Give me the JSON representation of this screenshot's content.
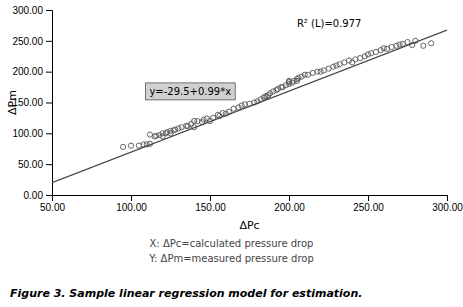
{
  "chart_data": {
    "type": "scatter",
    "xlabel": "ΔPc",
    "ylabel": "ΔPm",
    "annotations": [
      "R² (L)=0.977",
      "y=-29.5+0.99*x"
    ],
    "notes": [
      "X: ΔPc=calculated pressure drop",
      "Y: ΔPm=measured pressure drop"
    ],
    "caption": "Figure 3. Sample linear regression model for estimation.",
    "xlim": [
      50,
      300
    ],
    "ylim": [
      0,
      300
    ],
    "xticks": [
      {
        "value": 50,
        "label": "50.00"
      },
      {
        "value": 100,
        "label": "100.00"
      },
      {
        "value": 150,
        "label": "150.00"
      },
      {
        "value": 200,
        "label": "200.00"
      },
      {
        "value": 250,
        "label": "250.00"
      },
      {
        "value": 300,
        "label": "300.00"
      }
    ],
    "yticks": [
      {
        "value": 0,
        "label": "0.00"
      },
      {
        "value": 50,
        "label": "50.00"
      },
      {
        "value": 100,
        "label": "100.00"
      },
      {
        "value": 150,
        "label": "150.00"
      },
      {
        "value": 200,
        "label": "200.00"
      },
      {
        "value": 250,
        "label": "250.00"
      },
      {
        "value": 300,
        "label": "300.00"
      }
    ],
    "series": [
      {
        "type": "scatter",
        "color": "#555555",
        "marker": "circle",
        "x": [
          95,
          100,
          105,
          108,
          110,
          112,
          112,
          115,
          116,
          118,
          120,
          120,
          122,
          123,
          125,
          125,
          127,
          128,
          130,
          132,
          135,
          136,
          138,
          140,
          140,
          142,
          145,
          146,
          148,
          150,
          152,
          155,
          156,
          158,
          160,
          162,
          165,
          168,
          170,
          172,
          175,
          178,
          180,
          182,
          184,
          185,
          186,
          187,
          188,
          190,
          192,
          193,
          195,
          196,
          198,
          200,
          200,
          200,
          202,
          203,
          205,
          205,
          206,
          208,
          210,
          212,
          215,
          218,
          220,
          222,
          225,
          228,
          230,
          232,
          235,
          238,
          240,
          242,
          245,
          248,
          250,
          252,
          255,
          258,
          260,
          262,
          265,
          268,
          270,
          272,
          275,
          278,
          280,
          285,
          290
        ],
        "values": [
          78,
          80,
          80,
          82,
          82,
          83,
          98,
          95,
          96,
          97,
          95,
          100,
          100,
          102,
          100,
          104,
          105,
          106,
          108,
          110,
          112,
          112,
          115,
          110,
          120,
          120,
          118,
          122,
          124,
          120,
          125,
          130,
          128,
          133,
          132,
          135,
          140,
          142,
          145,
          147,
          148,
          150,
          152,
          155,
          158,
          160,
          160,
          162,
          165,
          168,
          170,
          172,
          175,
          175,
          178,
          180,
          183,
          185,
          182,
          185,
          185,
          188,
          190,
          192,
          195,
          195,
          198,
          200,
          200,
          202,
          205,
          208,
          210,
          212,
          215,
          218,
          215,
          220,
          222,
          225,
          228,
          230,
          232,
          235,
          238,
          237,
          240,
          242,
          244,
          245,
          248,
          243,
          250,
          242,
          246
        ]
      },
      {
        "type": "line",
        "color": "#444444",
        "line_style": "solid",
        "x": [
          50,
          300
        ],
        "values": [
          20,
          267.5
        ]
      }
    ]
  }
}
